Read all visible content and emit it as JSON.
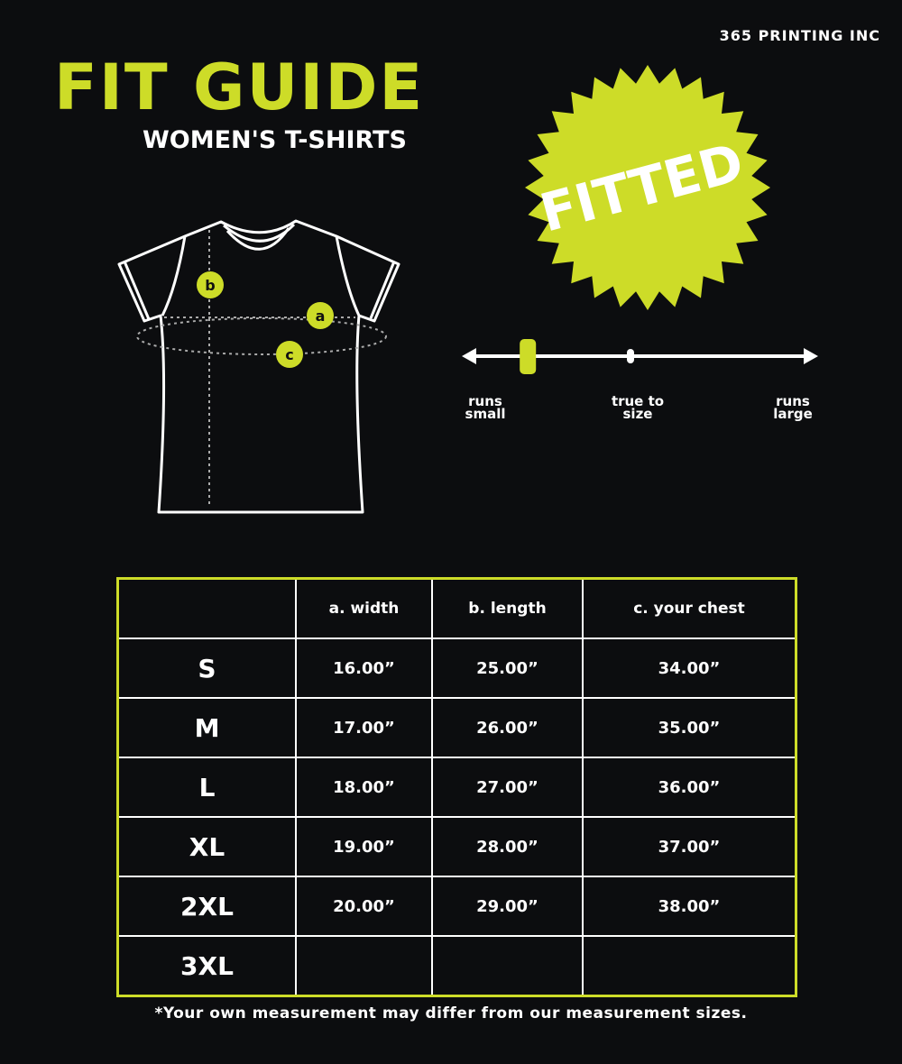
{
  "brand": "365 PRINTING INC",
  "title": "FIT GUIDE",
  "subtitle": "WOMEN'S T-SHIRTS",
  "badge": "FITTED",
  "colors": {
    "accent": "#cddc28",
    "background": "#0c0d0f",
    "line": "#ffffff"
  },
  "diagram": {
    "markers": [
      "a",
      "b",
      "c"
    ]
  },
  "fit_scale": {
    "labels": {
      "small": "runs small",
      "true": "true to size",
      "large": "runs large"
    },
    "level_fraction": 0.18
  },
  "table": {
    "headers": [
      "",
      "a. width",
      "b. length",
      "c. your chest"
    ],
    "rows": [
      [
        "S",
        "16.00”",
        "25.00”",
        "34.00”"
      ],
      [
        "M",
        "17.00”",
        "26.00”",
        "35.00”"
      ],
      [
        "L",
        "18.00”",
        "27.00”",
        "36.00”"
      ],
      [
        "XL",
        "19.00”",
        "28.00”",
        "37.00”"
      ],
      [
        "2XL",
        "20.00”",
        "29.00”",
        "38.00”"
      ],
      [
        "3XL",
        "",
        "",
        ""
      ]
    ]
  },
  "note": "*Your own measurement may differ from our measurement sizes."
}
